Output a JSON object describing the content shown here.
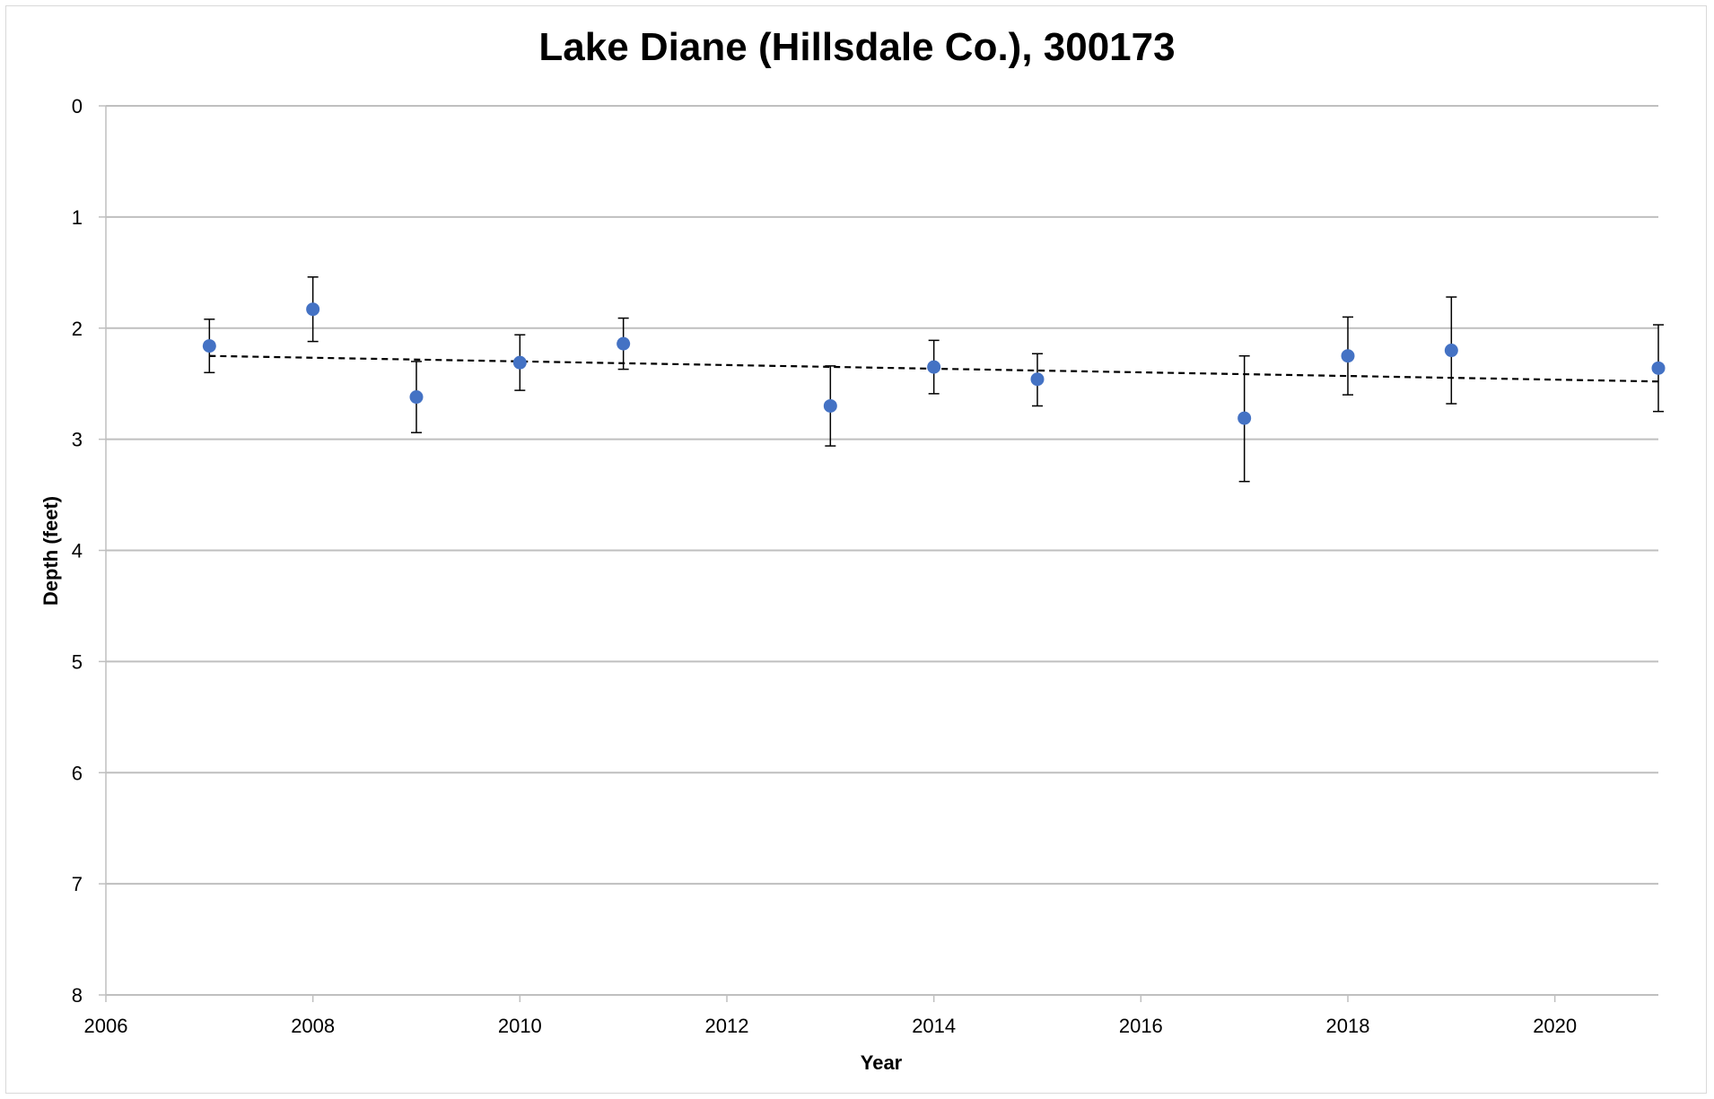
{
  "chart_data": {
    "type": "scatter",
    "title": "Lake Diane (Hillsdale Co.), 300173",
    "xlabel": "Year",
    "ylabel": "Depth (feet)",
    "xlim": [
      2006,
      2021
    ],
    "ylim": [
      0,
      8
    ],
    "y_inverted": true,
    "x_ticks": [
      "2006",
      "2008",
      "2010",
      "2012",
      "2014",
      "2016",
      "2018",
      "2020"
    ],
    "y_ticks": [
      "0",
      "1",
      "2",
      "3",
      "4",
      "5",
      "6",
      "7",
      "8"
    ],
    "grid": "horizontal",
    "legend": "none",
    "marker_color": "#4472C4",
    "points": [
      {
        "x": 2007,
        "y": 2.16,
        "low": 1.92,
        "high": 2.4
      },
      {
        "x": 2008,
        "y": 1.83,
        "low": 1.54,
        "high": 2.12
      },
      {
        "x": 2009,
        "y": 2.62,
        "low": 2.3,
        "high": 2.94
      },
      {
        "x": 2010,
        "y": 2.31,
        "low": 2.06,
        "high": 2.56
      },
      {
        "x": 2011,
        "y": 2.14,
        "low": 1.91,
        "high": 2.37
      },
      {
        "x": 2013,
        "y": 2.7,
        "low": 2.34,
        "high": 3.06
      },
      {
        "x": 2014,
        "y": 2.35,
        "low": 2.11,
        "high": 2.59
      },
      {
        "x": 2015,
        "y": 2.46,
        "low": 2.23,
        "high": 2.7
      },
      {
        "x": 2017,
        "y": 2.81,
        "low": 2.25,
        "high": 3.38
      },
      {
        "x": 2018,
        "y": 2.25,
        "low": 1.9,
        "high": 2.6
      },
      {
        "x": 2019,
        "y": 2.2,
        "low": 1.72,
        "high": 2.68
      },
      {
        "x": 2021,
        "y": 2.36,
        "low": 1.97,
        "high": 2.75
      }
    ],
    "trendline": {
      "style": "dashed",
      "color": "#000000",
      "x": [
        2007,
        2021
      ],
      "y": [
        2.25,
        2.48
      ]
    }
  }
}
